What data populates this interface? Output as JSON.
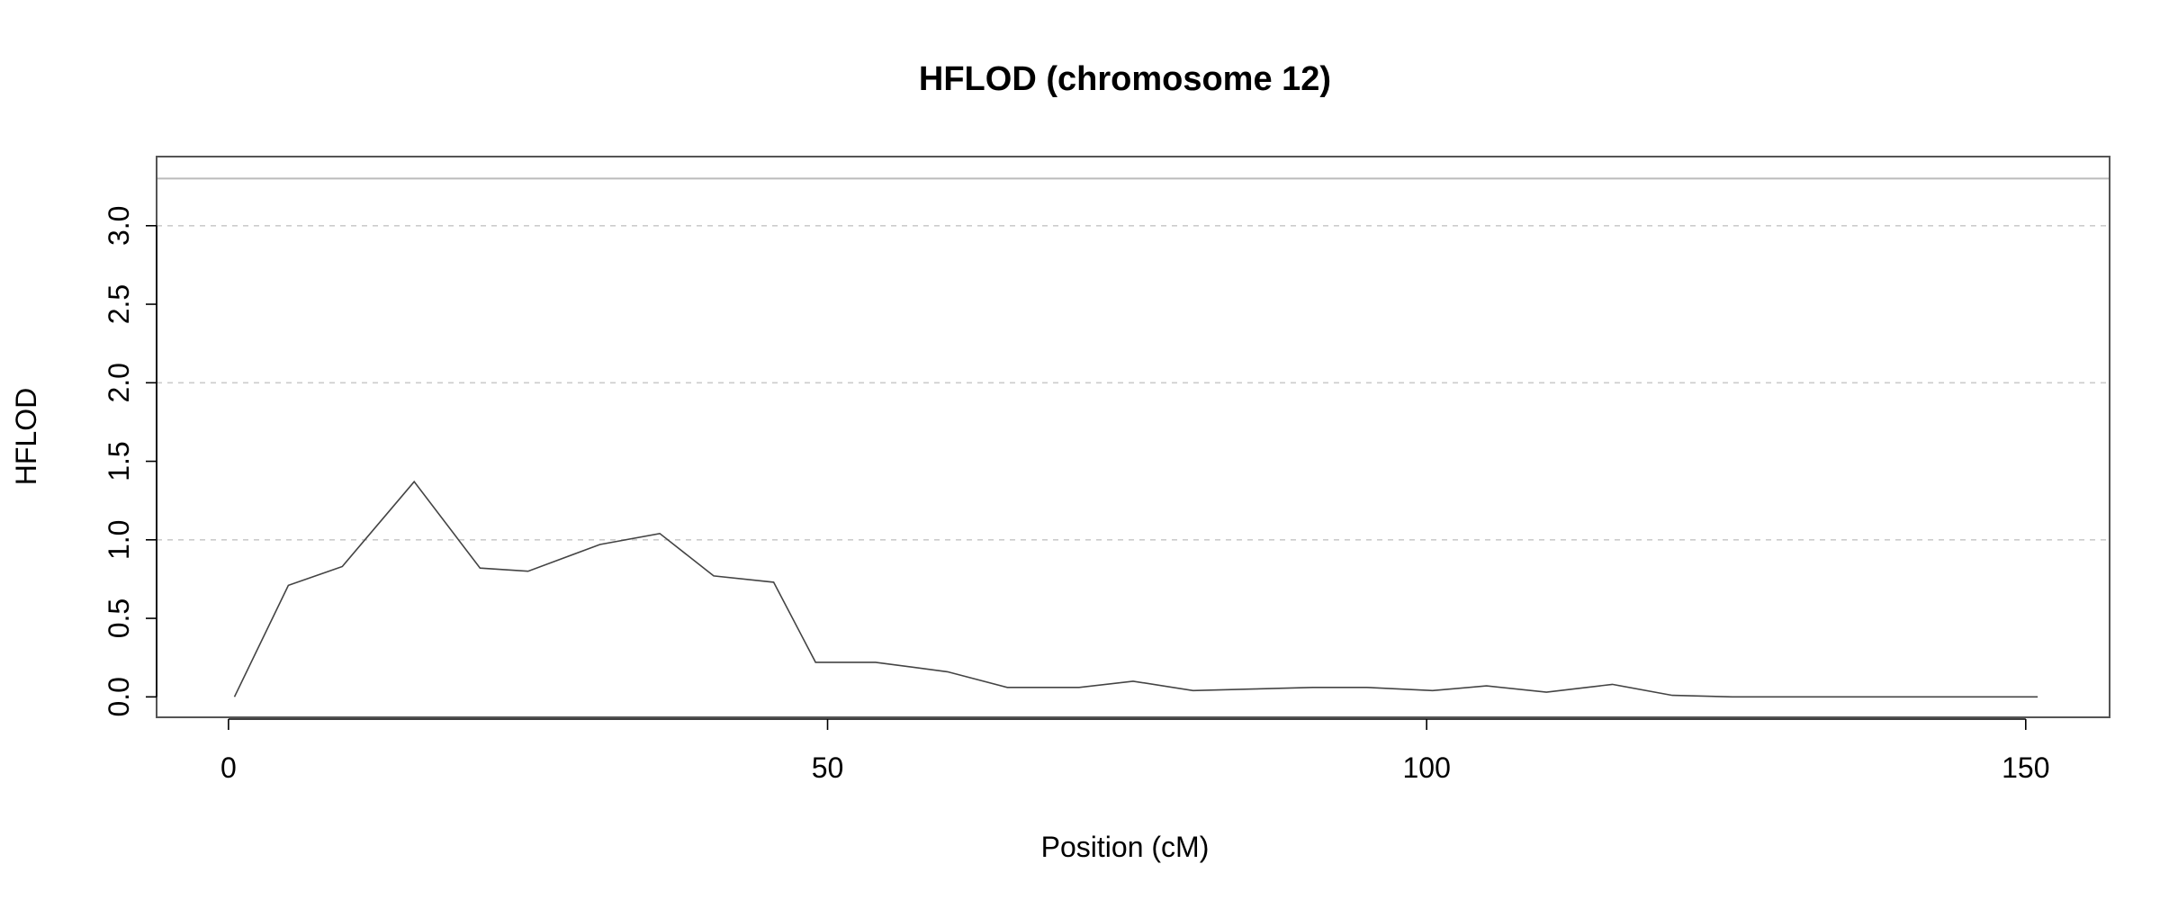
{
  "chart_data": {
    "type": "line",
    "title": "HFLOD (chromosome 12)",
    "xlabel": "Position (cM)",
    "ylabel": "HFLOD",
    "xlim": [
      -6,
      157
    ],
    "ylim": [
      -0.13,
      3.44
    ],
    "x_ticks": [
      0,
      50,
      100,
      150
    ],
    "x_tick_labels": [
      "0",
      "50",
      "100",
      "150"
    ],
    "y_ticks": [
      0.0,
      0.5,
      1.0,
      1.5,
      2.0,
      2.5,
      3.0
    ],
    "y_tick_labels": [
      "0.0",
      "0.5",
      "1.0",
      "1.5",
      "2.0",
      "2.5",
      "3.0"
    ],
    "grid": "dashed horizontal at 1, 2, 3",
    "threshold_line": 3.3,
    "series": [
      {
        "x": [
          0.5,
          5,
          9.5,
          15.5,
          21,
          25,
          31,
          36,
          40.5,
          45.5,
          49,
          54,
          60,
          65,
          71,
          75.5,
          80.5,
          85.5,
          90.5,
          95,
          100.5,
          105,
          110,
          115.5,
          120.5,
          125.5,
          151
        ],
        "y": [
          0.0,
          0.71,
          0.83,
          1.37,
          0.82,
          0.8,
          0.97,
          1.04,
          0.77,
          0.73,
          0.22,
          0.22,
          0.16,
          0.06,
          0.06,
          0.1,
          0.04,
          0.05,
          0.06,
          0.06,
          0.04,
          0.07,
          0.03,
          0.08,
          0.01,
          0.0,
          0.0
        ]
      }
    ]
  }
}
